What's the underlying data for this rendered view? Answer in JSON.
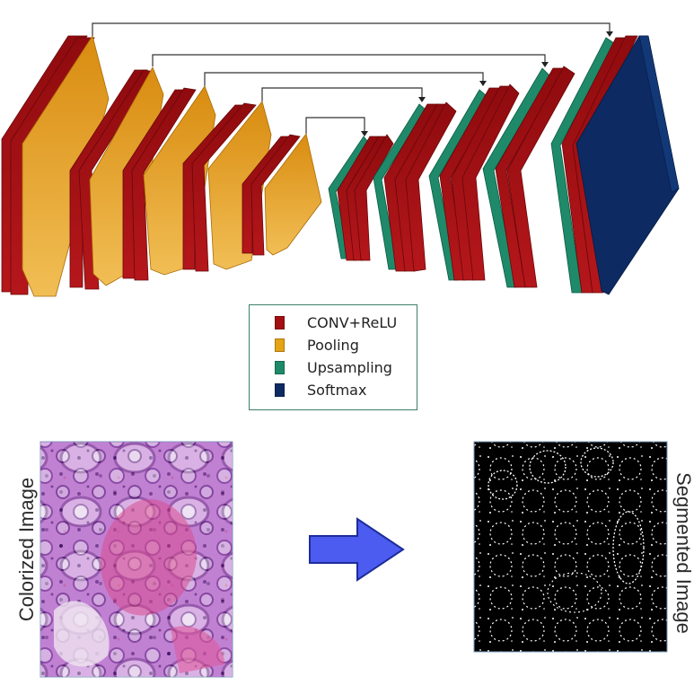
{
  "legend": {
    "items": [
      {
        "label": "CONV+ReLU",
        "color": "#a30f12"
      },
      {
        "label": "Pooling",
        "color": "#e5a315"
      },
      {
        "label": "Upsampling",
        "color": "#1e8a6a"
      },
      {
        "label": "Softmax",
        "color": "#0d2a63"
      }
    ]
  },
  "images": {
    "left_label": "Colorized Image",
    "right_label": "Segmented Image"
  },
  "colors": {
    "conv": "#a30f12",
    "pool": "#e5a315",
    "upsampling": "#1e8a6a",
    "softmax": "#0d2a63",
    "arrow": "#4c5cf0",
    "legend_border": "#3d7f66"
  }
}
